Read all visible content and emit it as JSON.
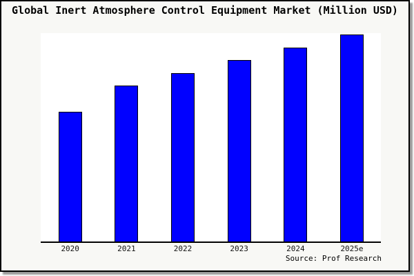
{
  "title": "Global Inert Atmosphere Control Equipment Market (Million USD)",
  "source_note": "Source: Prof Research",
  "colors": {
    "bar_fill": "#0101ff",
    "bar_border": "#000000",
    "figure_background": "#f8f8f5",
    "plot_background": "#ffffff",
    "axis_line": "#000000",
    "text": "#000000"
  },
  "chart_data": {
    "type": "bar",
    "title": "Global Inert Atmosphere Control Equipment Market (Million USD)",
    "categories": [
      "2020",
      "2021",
      "2022",
      "2023",
      "2024",
      "2025e"
    ],
    "values": [
      62.8,
      75.2,
      81.4,
      87.7,
      93.7,
      100
    ],
    "units": "relative index (no y-axis scale shown; tallest bar 2025e = 100)",
    "xlabel": "",
    "ylabel": "",
    "ylim": [
      0,
      100
    ],
    "y_axis_visible": false,
    "gridlines": false,
    "legend": false,
    "bar_color": "#0101ff",
    "annotation": "Source: Prof Research"
  }
}
